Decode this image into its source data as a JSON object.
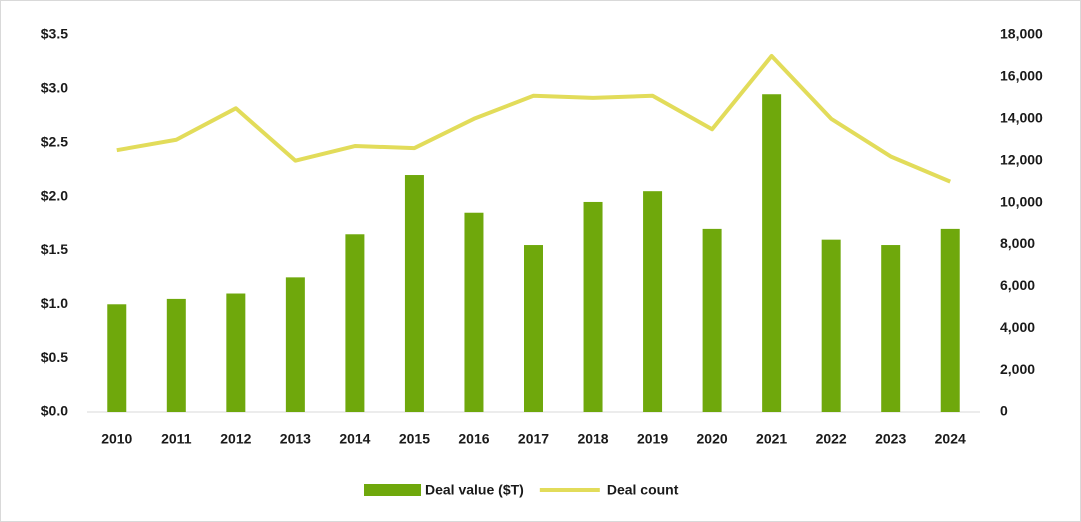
{
  "chart_data": {
    "type": "bar-line",
    "categories": [
      "2010",
      "2011",
      "2012",
      "2013",
      "2014",
      "2015",
      "2016",
      "2017",
      "2018",
      "2019",
      "2020",
      "2021",
      "2022",
      "2023",
      "2024"
    ],
    "series": [
      {
        "name": "Deal value ($T)",
        "color": "#6fa80c",
        "type": "bar",
        "axis": "y",
        "values": [
          1.0,
          1.05,
          1.1,
          1.25,
          1.65,
          2.2,
          1.85,
          1.55,
          1.95,
          2.05,
          1.7,
          2.95,
          1.6,
          1.55,
          1.7
        ]
      },
      {
        "name": "Deal count",
        "color": "#e2dc5a",
        "type": "line",
        "axis": "y2",
        "values": [
          12500,
          13000,
          14500,
          12000,
          12700,
          12600,
          14000,
          15100,
          15000,
          15100,
          13500,
          17000,
          14000,
          12200,
          11000
        ]
      }
    ],
    "ylim": [
      0,
      3.5
    ],
    "yticks": [
      {
        "value": 0,
        "label": "$0.0"
      },
      {
        "value": 0.5,
        "label": "$0.5"
      },
      {
        "value": 1.0,
        "label": "$1.0"
      },
      {
        "value": 1.5,
        "label": "$1.5"
      },
      {
        "value": 2.0,
        "label": "$2.0"
      },
      {
        "value": 2.5,
        "label": "$2.5"
      },
      {
        "value": 3.0,
        "label": "$3.0"
      },
      {
        "value": 3.5,
        "label": "$3.5"
      }
    ],
    "y2lim": [
      0,
      18000
    ],
    "y2ticks": [
      0,
      {
        "value": 2000,
        "label": "2,000"
      },
      {
        "value": 4000,
        "label": "4,000"
      },
      {
        "value": 6000,
        "label": "6,000"
      },
      {
        "value": 8000,
        "label": "8,000"
      },
      {
        "value": 10000,
        "label": "10,000"
      },
      {
        "value": 12000,
        "label": "12,000"
      },
      {
        "value": 14000,
        "label": "14,000"
      },
      {
        "value": 16000,
        "label": "16,000"
      },
      {
        "value": 18000,
        "label": "18,000"
      }
    ],
    "grid": false,
    "legend": "bottom"
  }
}
